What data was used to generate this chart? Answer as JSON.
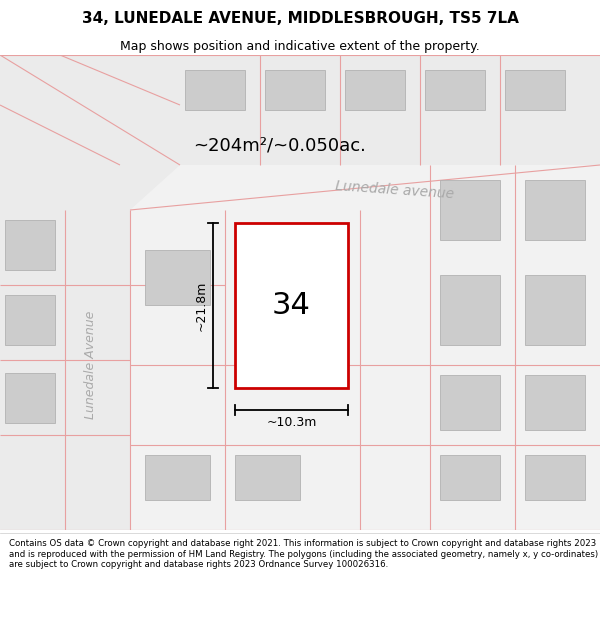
{
  "title_line1": "34, LUNEDALE AVENUE, MIDDLESBROUGH, TS5 7LA",
  "title_line2": "Map shows position and indicative extent of the property.",
  "footer_text": "Contains OS data © Crown copyright and database right 2021. This information is subject to Crown copyright and database rights 2023 and is reproduced with the permission of HM Land Registry. The polygons (including the associated geometry, namely x, y co-ordinates) are subject to Crown copyright and database rights 2023 Ordnance Survey 100026316.",
  "area_label": "~204m²/~0.050ac.",
  "width_label": "~10.3m",
  "height_label": "~21.8m",
  "house_number": "34",
  "street_label_v": "Lunedale Avenue",
  "street_label_h": "Lunedale avenue",
  "plot_border_color": "#cc0000",
  "road_line_color": "#e8a0a0",
  "building_fill": "#cccccc",
  "bg_color": "#f0f0f0",
  "white": "#ffffff",
  "title_bg": "#ffffff",
  "footer_bg": "#ffffff",
  "dim_color": "#000000"
}
